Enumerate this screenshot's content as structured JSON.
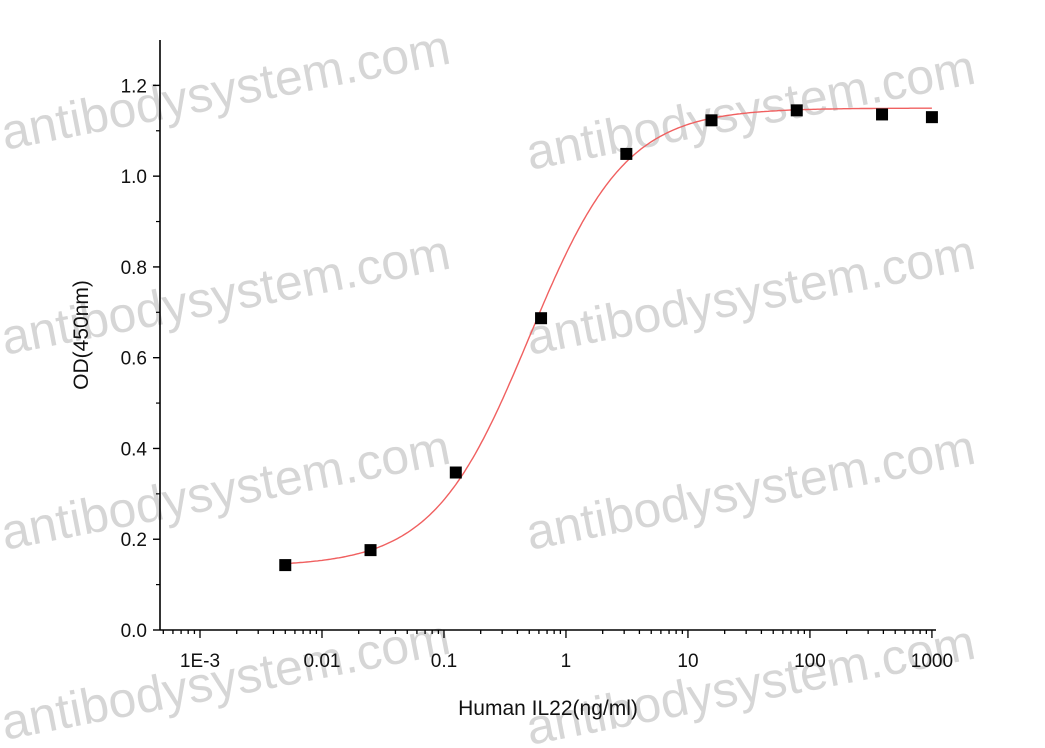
{
  "chart_data": {
    "type": "scatter",
    "title": "",
    "xlabel": "Human IL22(ng/ml)",
    "ylabel": "OD(450nm)",
    "x_scale": "log",
    "xlim": [
      0.00047,
      1080
    ],
    "ylim": [
      0,
      1.3
    ],
    "x_ticks": [
      0.001,
      0.01,
      0.1,
      1,
      10,
      100,
      1000
    ],
    "x_tick_labels": [
      "1E-3",
      "0.01",
      "0.1",
      "1",
      "10",
      "100",
      "1000"
    ],
    "y_ticks": [
      0,
      0.2,
      0.4,
      0.6,
      0.8,
      1.0,
      1.2
    ],
    "y_tick_labels": [
      "0.0",
      "0.2",
      "0.4",
      "0.6",
      "0.8",
      "1.0",
      "1.2"
    ],
    "grid": false,
    "series": [
      {
        "marker": "square",
        "color": "#000000",
        "x": [
          0.005,
          0.025,
          0.125,
          0.625,
          3.125,
          15.6,
          78,
          390,
          1000
        ],
        "y": [
          0.143,
          0.176,
          0.347,
          0.687,
          1.049,
          1.123,
          1.145,
          1.136,
          1.13
        ]
      }
    ],
    "fit_curve": {
      "type": "4PL",
      "color": "#f06060",
      "bottom": 0.14,
      "top": 1.15,
      "ec50": 0.5,
      "hill": 1.1,
      "x_range": [
        0.005,
        1000
      ]
    }
  },
  "watermark": "antibodysystem.com"
}
